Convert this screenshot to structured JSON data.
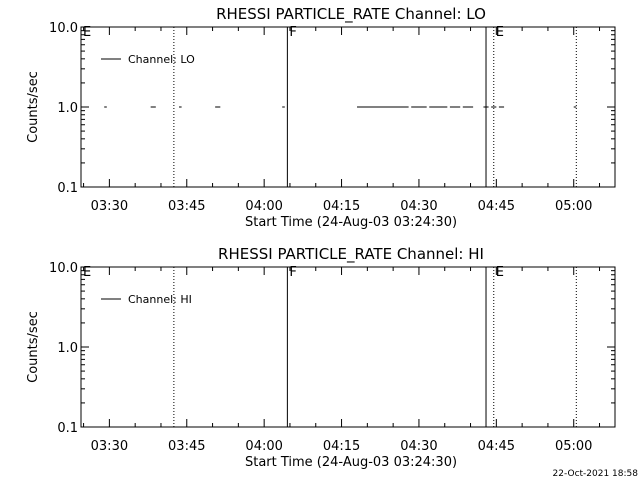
{
  "footer": {
    "timestamp": "22-Oct-2021 18:58"
  },
  "colors": {
    "foreground": "#000000",
    "background": "#ffffff"
  },
  "chart_data": [
    {
      "type": "line",
      "title": "RHESSI PARTICLE_RATE Channel: LO",
      "xlabel": "Start Time (24-Aug-03 03:24:30)",
      "ylabel": "Counts/sec",
      "y_scale": "log",
      "ylim": [
        0.1,
        10.0
      ],
      "xlim": [
        "03:24:30",
        "05:08:00"
      ],
      "grid": false,
      "legend": {
        "placement": "top-left",
        "entries": [
          "Channel: LO"
        ]
      },
      "x_ticks": [
        "03:30",
        "03:45",
        "04:00",
        "04:15",
        "04:30",
        "04:45",
        "05:00"
      ],
      "y_ticks": [
        "10.0",
        "1.0",
        "0.1"
      ],
      "series": [
        {
          "name": "Channel: LO",
          "segments": [
            {
              "x": [
                "03:29:00",
                "03:29:30"
              ],
              "y": [
                1.0,
                1.0
              ]
            },
            {
              "x": [
                "03:38:00",
                "03:39:00"
              ],
              "y": [
                1.0,
                1.0
              ]
            },
            {
              "x": [
                "03:43:30",
                "03:44:00"
              ],
              "y": [
                1.0,
                1.0
              ]
            },
            {
              "x": [
                "03:50:30",
                "03:51:30"
              ],
              "y": [
                1.0,
                1.0
              ]
            },
            {
              "x": [
                "04:03:30",
                "04:04:00"
              ],
              "y": [
                1.0,
                1.0
              ]
            },
            {
              "x": [
                "04:18:00",
                "04:28:00"
              ],
              "y": [
                1.0,
                1.0
              ]
            },
            {
              "x": [
                "04:28:30",
                "04:31:30"
              ],
              "y": [
                1.0,
                1.0
              ]
            },
            {
              "x": [
                "04:32:00",
                "04:35:30"
              ],
              "y": [
                1.0,
                1.0
              ]
            },
            {
              "x": [
                "04:36:00",
                "04:38:00"
              ],
              "y": [
                1.0,
                1.0
              ]
            },
            {
              "x": [
                "04:38:30",
                "04:40:30"
              ],
              "y": [
                1.0,
                1.0
              ]
            },
            {
              "x": [
                "04:42:30",
                "04:43:30"
              ],
              "y": [
                1.0,
                1.0
              ]
            },
            {
              "x": [
                "04:44:00",
                "04:45:00"
              ],
              "y": [
                1.0,
                1.0
              ]
            },
            {
              "x": [
                "04:45:30",
                "04:46:30"
              ],
              "y": [
                1.0,
                1.0
              ]
            },
            {
              "x": [
                "05:00:00",
                "05:00:30"
              ],
              "y": [
                1.0,
                1.0
              ]
            }
          ]
        }
      ],
      "markers": [
        {
          "x": "03:24:30",
          "style": "none",
          "label": "E"
        },
        {
          "x": "03:42:30",
          "style": "dotted",
          "label": ""
        },
        {
          "x": "04:04:30",
          "style": "solid",
          "label": "F"
        },
        {
          "x": "04:43:00",
          "style": "solid",
          "label": ""
        },
        {
          "x": "04:44:30",
          "style": "dotted",
          "label": "E"
        },
        {
          "x": "05:00:30",
          "style": "dotted",
          "label": ""
        }
      ]
    },
    {
      "type": "line",
      "title": "RHESSI PARTICLE_RATE Channel: HI",
      "xlabel": "Start Time (24-Aug-03 03:24:30)",
      "ylabel": "Counts/sec",
      "y_scale": "log",
      "ylim": [
        0.1,
        10.0
      ],
      "xlim": [
        "03:24:30",
        "05:08:00"
      ],
      "grid": false,
      "legend": {
        "placement": "top-left",
        "entries": [
          "Channel: HI"
        ]
      },
      "x_ticks": [
        "03:30",
        "03:45",
        "04:00",
        "04:15",
        "04:30",
        "04:45",
        "05:00"
      ],
      "y_ticks": [
        "10.0",
        "1.0",
        "0.1"
      ],
      "series": [
        {
          "name": "Channel: HI",
          "segments": []
        }
      ],
      "markers": [
        {
          "x": "03:24:30",
          "style": "none",
          "label": "E"
        },
        {
          "x": "03:42:30",
          "style": "dotted",
          "label": ""
        },
        {
          "x": "04:04:30",
          "style": "solid",
          "label": "F"
        },
        {
          "x": "04:43:00",
          "style": "solid",
          "label": ""
        },
        {
          "x": "04:44:30",
          "style": "dotted",
          "label": "E"
        },
        {
          "x": "05:00:30",
          "style": "dotted",
          "label": ""
        }
      ]
    }
  ]
}
